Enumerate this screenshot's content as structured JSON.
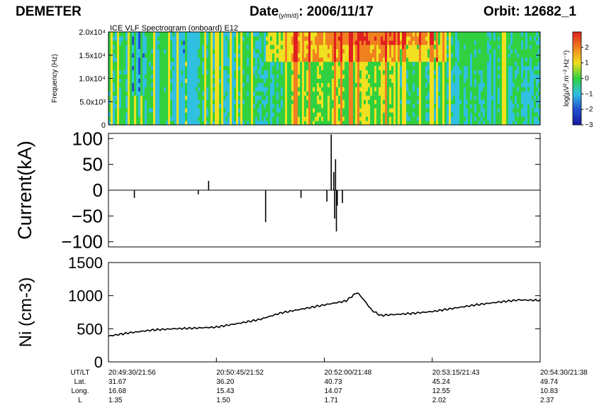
{
  "header": {
    "satellite": "DEMETER",
    "date_label": "Date",
    "date_format": "(y/m/d)",
    "date_value": ": 2006/11/17",
    "orbit": "Orbit: 12682_1"
  },
  "chart_data": [
    {
      "type": "heatmap",
      "title": "ICE VLF Spectrogram (onboard) E12",
      "ylabel": "Frequency (Hz)",
      "ylim": [
        0,
        20000
      ],
      "y_ticks": [
        {
          "value": 0,
          "label": "0"
        },
        {
          "value": 5000,
          "label": "5.0x10³"
        },
        {
          "value": 10000,
          "label": "1.0x10⁴"
        },
        {
          "value": 15000,
          "label": "1.5x10⁴"
        },
        {
          "value": 20000,
          "label": "2.0x10⁴"
        }
      ],
      "colorbar": {
        "label": "log(µV².m⁻².Hz⁻¹)",
        "range": [
          -3,
          3
        ],
        "ticks": [
          -3,
          -2,
          -1,
          0,
          1,
          2
        ],
        "colors": [
          "#1a1aa0",
          "#2050d0",
          "#30c0e0",
          "#30d040",
          "#f0e020",
          "#f08020",
          "#e02020"
        ]
      },
      "time_range_ut": [
        "20:49:30",
        "20:54:30"
      ]
    },
    {
      "type": "bar",
      "ylabel": "Current(kA)",
      "ylim": [
        -110,
        110
      ],
      "y_ticks": [
        -100,
        -50,
        0,
        50,
        100
      ],
      "x_unit": "minutes after 20:49:30 UT",
      "x_range": [
        0,
        5
      ],
      "series": [
        {
          "x": [
            0.3,
            1.04,
            1.16,
            1.82,
            2.23,
            2.53,
            2.58,
            2.61,
            2.62,
            2.63,
            2.64,
            2.65,
            2.71
          ],
          "values": [
            -15,
            -8,
            18,
            -62,
            -15,
            -22,
            108,
            35,
            -55,
            60,
            -80,
            -30,
            -25
          ]
        }
      ]
    },
    {
      "type": "line",
      "ylabel": "Ni (cm-3)",
      "ylim": [
        0,
        1500
      ],
      "y_ticks": [
        0,
        500,
        1000,
        1500
      ],
      "x_unit": "minutes after 20:49:30 UT",
      "x_range": [
        0,
        5
      ],
      "series": [
        {
          "x": [
            0,
            0.25,
            0.5,
            0.75,
            1.0,
            1.25,
            1.5,
            1.75,
            2.0,
            2.25,
            2.5,
            2.75,
            2.88,
            2.95,
            3.05,
            3.15,
            3.25,
            3.5,
            3.75,
            4.0,
            4.25,
            4.5,
            4.75,
            5.0
          ],
          "values": [
            390,
            440,
            480,
            500,
            510,
            525,
            580,
            640,
            740,
            800,
            860,
            920,
            1050,
            950,
            780,
            700,
            710,
            730,
            760,
            810,
            860,
            900,
            935,
            930
          ]
        }
      ]
    }
  ],
  "orbit_table": {
    "row_labels": [
      "UT/LT",
      "Lat.",
      "Long.",
      "L"
    ],
    "columns": [
      {
        "ut_lt": "20:49:30/21:56",
        "lat": "31.67",
        "long": "16.68",
        "l": "1.35"
      },
      {
        "ut_lt": "20:50:45/21:52",
        "lat": "36.20",
        "long": "15.43",
        "l": "1.50"
      },
      {
        "ut_lt": "20:52:00/21:48",
        "lat": "40.73",
        "long": "14.07",
        "l": "1.71"
      },
      {
        "ut_lt": "20:53:15/21:43",
        "lat": "45.24",
        "long": "12.55",
        "l": "2.02"
      },
      {
        "ut_lt": "20:54:30/21:38",
        "lat": "49.74",
        "long": "10.83",
        "l": "2.37"
      }
    ]
  }
}
